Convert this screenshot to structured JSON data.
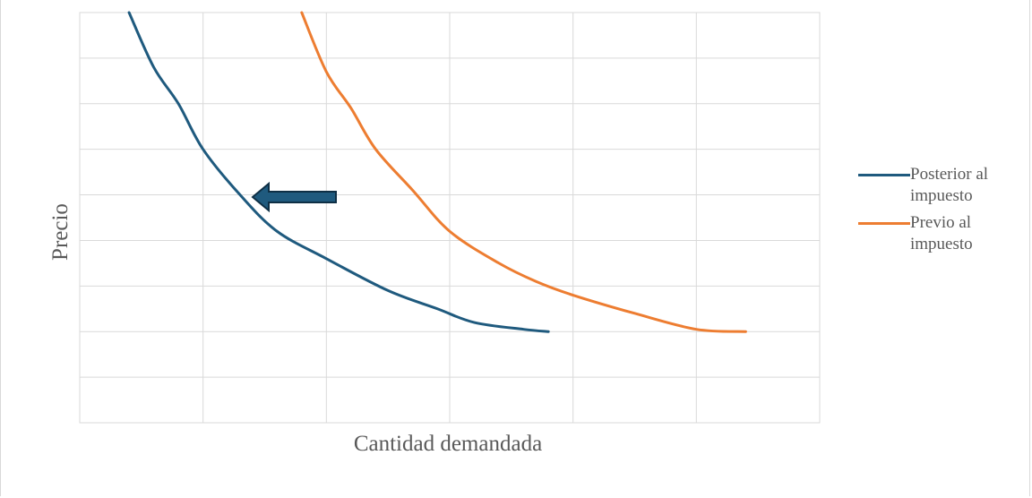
{
  "chart_data": {
    "type": "line",
    "title": "",
    "xlabel": "Cantidad demandada",
    "ylabel": "Precio",
    "xlim": [
      0,
      6
    ],
    "ylim": [
      0,
      9
    ],
    "grid": true,
    "tick_labels_shown": false,
    "legend_position": "right",
    "series": [
      {
        "name": "Posterior al impuesto",
        "color": "#1f5a7e",
        "x": [
          0.4,
          0.6,
          0.8,
          1.0,
          1.3,
          1.6,
          2.0,
          2.5,
          2.9,
          3.2,
          3.6,
          3.8
        ],
        "y": [
          9,
          7.8,
          7,
          6,
          5,
          4.2,
          3.6,
          2.9,
          2.5,
          2.2,
          2.05,
          2.0
        ]
      },
      {
        "name": "Previo al impuesto",
        "color": "#ed7d31",
        "x": [
          1.8,
          2.0,
          2.2,
          2.4,
          2.7,
          3.0,
          3.4,
          3.7,
          4.0,
          4.5,
          5.0,
          5.4
        ],
        "y": [
          9,
          7.7,
          6.9,
          6.0,
          5.1,
          4.2,
          3.5,
          3.1,
          2.8,
          2.4,
          2.05,
          2.0
        ]
      }
    ],
    "annotation": {
      "type": "arrow",
      "direction": "left",
      "color": "#1f5a7e"
    }
  }
}
